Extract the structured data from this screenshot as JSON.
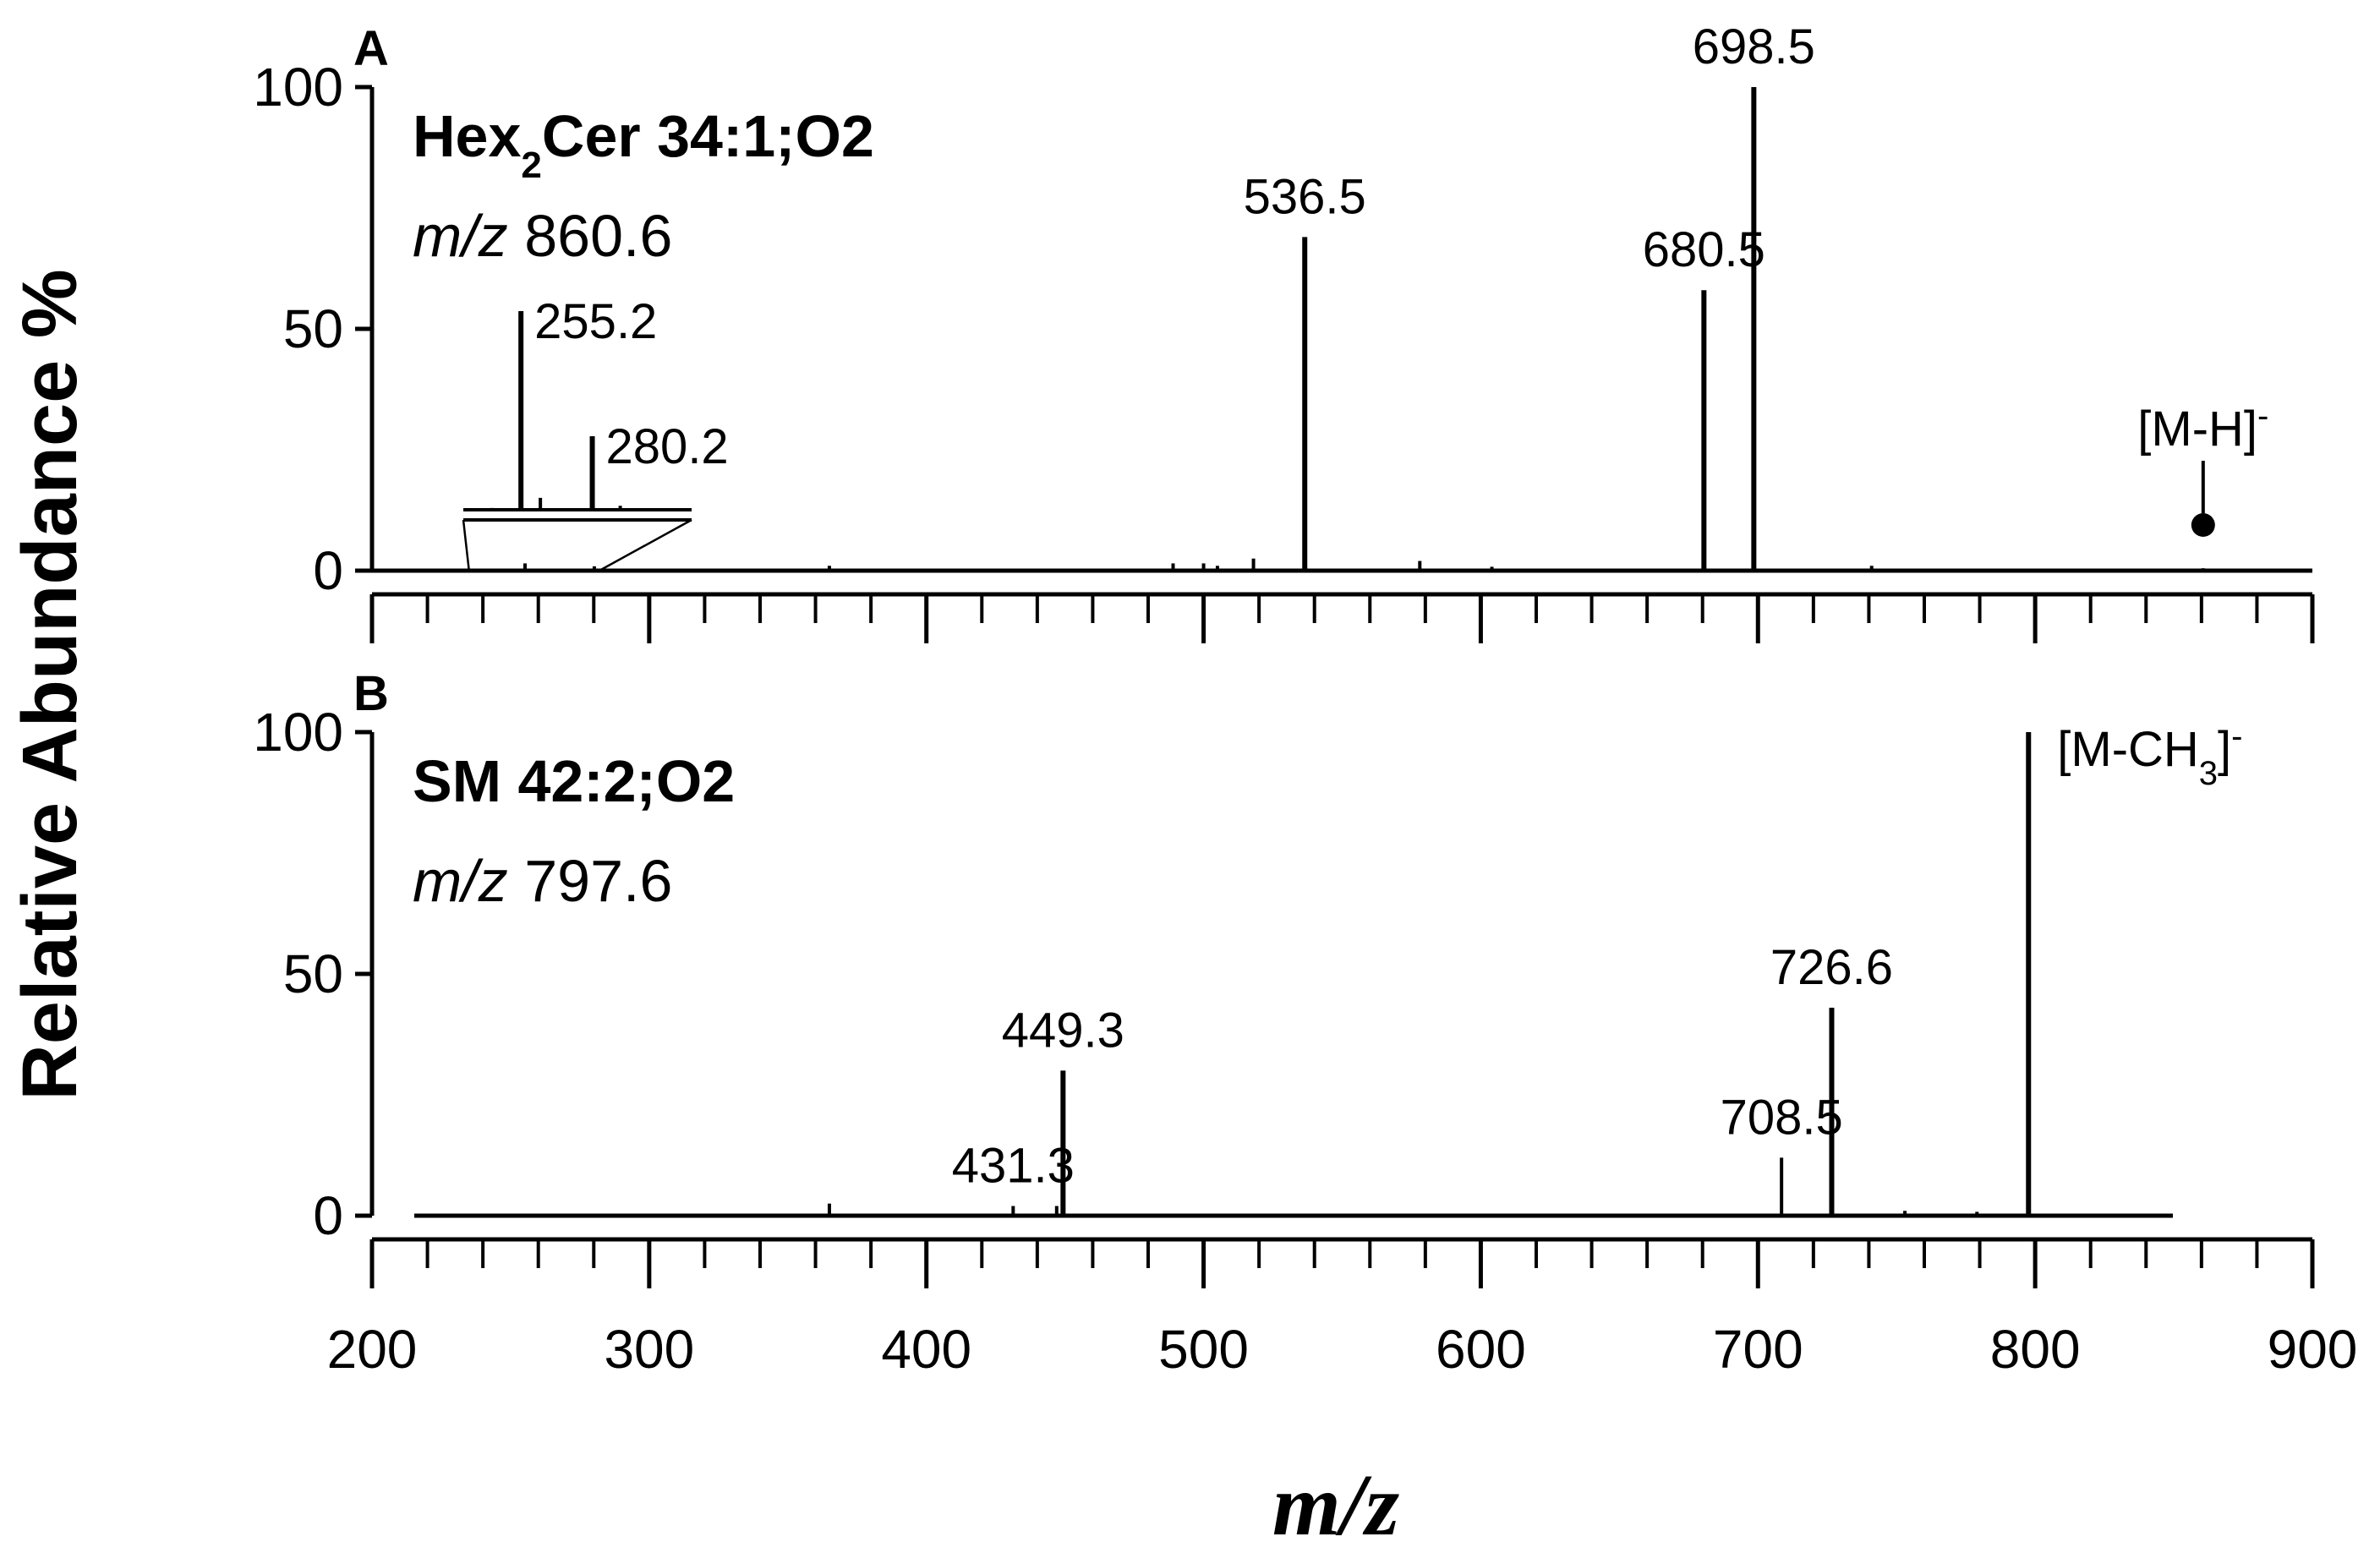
{
  "chart_data": [
    {
      "panel": "A",
      "type": "bar",
      "title_main": "Hex",
      "title_sub": "2",
      "title_rest": "Cer 34:1;O2",
      "subtitle_italic": "m/z",
      "subtitle_value": "860.6",
      "xlim": [
        200,
        900
      ],
      "ylim": [
        0,
        100
      ],
      "yticks": [
        "0",
        "50",
        "100"
      ],
      "peaks": [
        {
          "mz": 255.2,
          "y": 1.5,
          "label": ""
        },
        {
          "mz": 262.0,
          "y": 0.4,
          "label": ""
        },
        {
          "mz": 280.2,
          "y": 0.9,
          "label": ""
        },
        {
          "mz": 294.0,
          "y": 0.4,
          "label": ""
        },
        {
          "mz": 365.0,
          "y": 1.0,
          "label": ""
        },
        {
          "mz": 489.0,
          "y": 1.5,
          "label": ""
        },
        {
          "mz": 500.0,
          "y": 1.5,
          "label": ""
        },
        {
          "mz": 505.0,
          "y": 1.0,
          "label": ""
        },
        {
          "mz": 518.0,
          "y": 2.5,
          "label": ""
        },
        {
          "mz": 536.5,
          "y": 69,
          "label": "536.5"
        },
        {
          "mz": 578.0,
          "y": 2.0,
          "label": ""
        },
        {
          "mz": 604.0,
          "y": 0.8,
          "label": ""
        },
        {
          "mz": 680.5,
          "y": 58,
          "label": "680.5"
        },
        {
          "mz": 698.5,
          "y": 100,
          "label": "698.5"
        },
        {
          "mz": 741.0,
          "y": 1.0,
          "label": ""
        },
        {
          "mz": 860.6,
          "y": 0.5,
          "label": ""
        }
      ],
      "inset": {
        "xrange": [
          235,
          315
        ],
        "peaks": [
          {
            "mz": 245,
            "y": 0.9,
            "label": ""
          },
          {
            "mz": 255.2,
            "y": 100,
            "label": "255.2"
          },
          {
            "mz": 262,
            "y": 6,
            "label": ""
          },
          {
            "mz": 280.2,
            "y": 37,
            "label": "280.2"
          },
          {
            "mz": 290,
            "y": 2,
            "label": ""
          }
        ]
      },
      "precursor": {
        "label": "[M-H]",
        "sup": "-",
        "mz": 860.6
      }
    },
    {
      "panel": "B",
      "type": "bar",
      "title_main": "SM 42:2;O2",
      "subtitle_italic": "m/z",
      "subtitle_value": "797.6",
      "xlim": [
        200,
        900
      ],
      "ylim": [
        0,
        100
      ],
      "yticks": [
        "0",
        "50",
        "100"
      ],
      "peaks": [
        {
          "mz": 365.0,
          "y": 2.5,
          "label": ""
        },
        {
          "mz": 431.3,
          "y": 2.0,
          "label": "431.3"
        },
        {
          "mz": 447.0,
          "y": 2.0,
          "label": ""
        },
        {
          "mz": 449.3,
          "y": 30,
          "label": "449.3"
        },
        {
          "mz": 708.5,
          "y": 12,
          "label": "708.5"
        },
        {
          "mz": 726.6,
          "y": 43,
          "label": "726.6"
        },
        {
          "mz": 753.0,
          "y": 1.0,
          "label": ""
        },
        {
          "mz": 779.0,
          "y": 0.8,
          "label": ""
        },
        {
          "mz": 797.6,
          "y": 100,
          "label": ""
        }
      ],
      "precursor": {
        "label": "[M-CH",
        "sub": "3",
        "after": "]",
        "sup": "-",
        "mz": 797.6
      }
    }
  ],
  "xaxis": {
    "ticks": [
      "200",
      "300",
      "400",
      "500",
      "600",
      "700",
      "800",
      "900"
    ],
    "label": "m/z"
  },
  "ylabel": "Relative Abundance %"
}
